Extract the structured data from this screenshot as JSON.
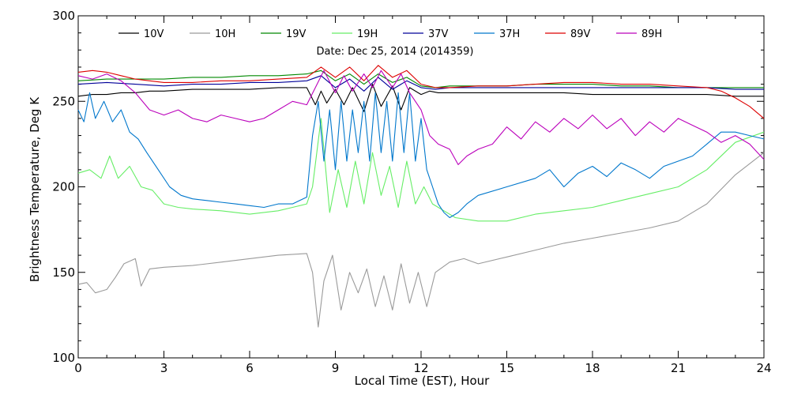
{
  "chart_data": {
    "type": "line",
    "title": "",
    "annotation": "Date: Dec 25, 2014 (2014359)",
    "xlabel": "Local Time (EST), Hour",
    "ylabel": "Brightness Temperature, Deg K",
    "xlim": [
      0,
      24
    ],
    "ylim": [
      100,
      300
    ],
    "x_ticks": [
      0,
      3,
      6,
      9,
      12,
      15,
      18,
      21,
      24
    ],
    "y_ticks": [
      100,
      150,
      200,
      250,
      300
    ],
    "grid": false,
    "legend_position": "top",
    "series": [
      {
        "name": "10V",
        "color": "#000000",
        "x": [
          0,
          0.5,
          1,
          1.5,
          2,
          2.5,
          3,
          4,
          5,
          6,
          7,
          8,
          8.3,
          8.5,
          8.7,
          9,
          9.3,
          9.6,
          10,
          10.3,
          10.6,
          11,
          11.3,
          11.6,
          12,
          12.3,
          12.6,
          13,
          14,
          15,
          16,
          17,
          18,
          19,
          20,
          21,
          22,
          23,
          24
        ],
        "y": [
          253,
          254,
          254,
          255,
          255,
          256,
          256,
          257,
          257,
          257,
          258,
          258,
          248,
          256,
          249,
          257,
          248,
          258,
          244,
          260,
          247,
          259,
          245,
          258,
          254,
          256,
          255,
          255,
          255,
          255,
          255,
          255,
          254,
          254,
          254,
          254,
          254,
          253,
          253
        ]
      },
      {
        "name": "10H",
        "color": "#9a9a9a",
        "x": [
          0,
          0.3,
          0.6,
          1,
          1.3,
          1.6,
          2,
          2.2,
          2.5,
          3,
          4,
          5,
          6,
          7,
          8,
          8.2,
          8.4,
          8.6,
          8.9,
          9.2,
          9.5,
          9.8,
          10.1,
          10.4,
          10.7,
          11,
          11.3,
          11.6,
          11.9,
          12.2,
          12.5,
          13,
          13.5,
          14,
          15,
          16,
          17,
          18,
          19,
          20,
          21,
          22,
          23,
          24
        ],
        "y": [
          143,
          144,
          138,
          140,
          147,
          155,
          158,
          142,
          152,
          153,
          154,
          156,
          158,
          160,
          161,
          150,
          118,
          145,
          160,
          128,
          150,
          138,
          152,
          130,
          148,
          128,
          155,
          132,
          150,
          130,
          150,
          156,
          158,
          155,
          159,
          163,
          167,
          170,
          173,
          176,
          180,
          190,
          207,
          220
        ]
      },
      {
        "name": "19V",
        "color": "#008800",
        "x": [
          0,
          1,
          2,
          3,
          4,
          5,
          6,
          7,
          8,
          8.5,
          9,
          9.5,
          10,
          10.5,
          11,
          11.5,
          12,
          12.5,
          13,
          14,
          15,
          16,
          17,
          18,
          19,
          20,
          21,
          22,
          23,
          24
        ],
        "y": [
          262,
          263,
          263,
          263,
          264,
          264,
          265,
          265,
          266,
          268,
          262,
          266,
          260,
          266,
          261,
          264,
          259,
          258,
          259,
          259,
          259,
          260,
          260,
          260,
          259,
          259,
          258,
          258,
          258,
          258
        ]
      },
      {
        "name": "19H",
        "color": "#66ee66",
        "x": [
          0,
          0.4,
          0.8,
          1.1,
          1.4,
          1.8,
          2.2,
          2.6,
          3,
          3.5,
          4,
          5,
          6,
          7,
          7.5,
          8,
          8.2,
          8.5,
          8.8,
          9.1,
          9.4,
          9.7,
          10,
          10.3,
          10.6,
          10.9,
          11.2,
          11.5,
          11.8,
          12.1,
          12.4,
          12.8,
          13.2,
          14,
          15,
          16,
          17,
          18,
          19,
          20,
          21,
          22,
          23,
          24
        ],
        "y": [
          208,
          210,
          205,
          218,
          205,
          212,
          200,
          198,
          190,
          188,
          187,
          186,
          184,
          186,
          188,
          190,
          200,
          240,
          185,
          210,
          188,
          215,
          190,
          220,
          195,
          212,
          188,
          215,
          190,
          200,
          190,
          186,
          182,
          180,
          180,
          184,
          186,
          188,
          192,
          196,
          200,
          210,
          226,
          232
        ]
      },
      {
        "name": "37V",
        "color": "#000099",
        "x": [
          0,
          1,
          2,
          3,
          4,
          5,
          6,
          7,
          8,
          8.5,
          9,
          9.5,
          10,
          10.5,
          11,
          11.5,
          12,
          12.5,
          13,
          14,
          15,
          16,
          17,
          18,
          19,
          20,
          21,
          22,
          23,
          24
        ],
        "y": [
          260,
          261,
          260,
          259,
          260,
          260,
          261,
          261,
          262,
          265,
          258,
          263,
          256,
          264,
          257,
          262,
          258,
          257,
          258,
          258,
          258,
          258,
          258,
          258,
          258,
          258,
          258,
          258,
          257,
          257
        ]
      },
      {
        "name": "37H",
        "color": "#0077cc",
        "x": [
          0,
          0.2,
          0.4,
          0.6,
          0.9,
          1.2,
          1.5,
          1.8,
          2.1,
          2.4,
          2.8,
          3.2,
          3.6,
          4,
          4.5,
          5,
          5.5,
          6,
          6.5,
          7,
          7.5,
          8,
          8.2,
          8.4,
          8.6,
          8.8,
          9,
          9.2,
          9.4,
          9.6,
          9.8,
          10,
          10.2,
          10.4,
          10.6,
          10.8,
          11,
          11.2,
          11.4,
          11.6,
          11.8,
          12,
          12.2,
          12.4,
          12.6,
          12.8,
          13,
          13.3,
          13.6,
          14,
          15,
          16,
          16.5,
          17,
          17.5,
          18,
          18.5,
          19,
          19.5,
          20,
          20.5,
          21,
          21.5,
          22,
          22.5,
          23,
          23.5,
          24
        ],
        "y": [
          245,
          238,
          255,
          240,
          250,
          238,
          245,
          232,
          228,
          220,
          210,
          200,
          195,
          193,
          192,
          191,
          190,
          189,
          188,
          190,
          190,
          194,
          230,
          250,
          215,
          245,
          210,
          250,
          215,
          245,
          220,
          250,
          215,
          255,
          220,
          250,
          215,
          255,
          220,
          255,
          215,
          240,
          210,
          200,
          190,
          185,
          182,
          185,
          190,
          195,
          200,
          205,
          210,
          200,
          208,
          212,
          206,
          214,
          210,
          205,
          212,
          215,
          218,
          225,
          232,
          232,
          230,
          228
        ]
      },
      {
        "name": "89V",
        "color": "#dd0000",
        "x": [
          0,
          0.5,
          1,
          1.5,
          2,
          2.5,
          3,
          4,
          5,
          6,
          7,
          8,
          8.5,
          9,
          9.5,
          10,
          10.5,
          11,
          11.5,
          12,
          12.5,
          13,
          14,
          15,
          16,
          17,
          18,
          19,
          20,
          21,
          22,
          22.5,
          23,
          23.5,
          24
        ],
        "y": [
          267,
          268,
          267,
          265,
          263,
          262,
          261,
          261,
          262,
          262,
          263,
          264,
          270,
          264,
          270,
          262,
          271,
          264,
          268,
          260,
          258,
          258,
          259,
          259,
          260,
          261,
          261,
          260,
          260,
          259,
          258,
          256,
          252,
          247,
          240
        ]
      },
      {
        "name": "89H",
        "color": "#bb00bb",
        "x": [
          0,
          0.5,
          1,
          1.5,
          2,
          2.5,
          3,
          3.5,
          4,
          4.5,
          5,
          5.5,
          6,
          6.5,
          7,
          7.5,
          8,
          8.3,
          8.6,
          9,
          9.3,
          9.6,
          10,
          10.3,
          10.6,
          11,
          11.3,
          11.6,
          12,
          12.3,
          12.6,
          13,
          13.3,
          13.6,
          14,
          14.5,
          15,
          15.5,
          16,
          16.5,
          17,
          17.5,
          18,
          18.5,
          19,
          19.5,
          20,
          20.5,
          21,
          21.5,
          22,
          22.5,
          23,
          23.5,
          24
        ],
        "y": [
          265,
          263,
          266,
          262,
          255,
          245,
          242,
          245,
          240,
          238,
          242,
          240,
          238,
          240,
          245,
          250,
          248,
          258,
          268,
          255,
          265,
          256,
          266,
          258,
          268,
          258,
          266,
          255,
          245,
          230,
          225,
          222,
          213,
          218,
          222,
          225,
          235,
          228,
          238,
          232,
          240,
          234,
          242,
          234,
          240,
          230,
          238,
          232,
          240,
          236,
          232,
          226,
          230,
          225,
          216
        ]
      }
    ]
  }
}
